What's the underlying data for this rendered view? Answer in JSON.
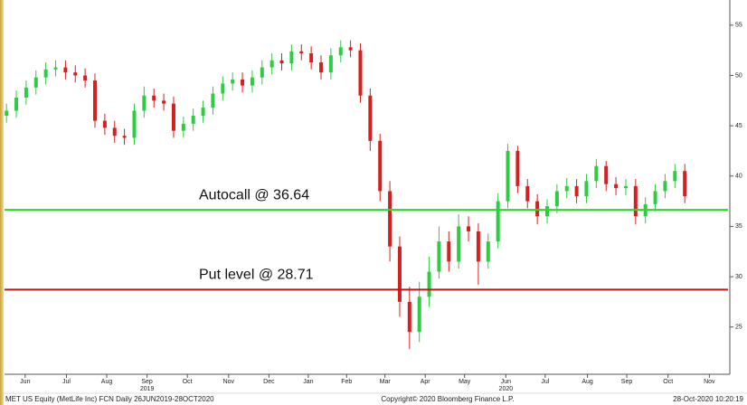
{
  "chart_data": {
    "type": "candlestick",
    "annotations": [
      {
        "text": "Autocall @ 36.64",
        "value": 36.64,
        "color": "#22e022"
      },
      {
        "text": "Put level @ 28.71",
        "value": 28.71,
        "color": "#d01010"
      }
    ],
    "footer": {
      "left": "MET US Equity (MetLife Inc) FCN  Daily 26JUN2019-28OCT2020",
      "center": "Copyright© 2020 Bloomberg Finance L.P.",
      "right": "28-Oct-2020 10:20:19"
    },
    "up_color": "#2ecc40",
    "down_color": "#d62020",
    "categories": [
      null,
      null,
      null,
      null,
      null,
      null,
      null,
      null,
      null,
      null,
      null,
      null,
      null,
      null,
      null,
      null,
      null,
      null,
      null,
      null,
      null,
      null,
      null,
      null,
      null,
      null,
      null,
      null,
      null,
      null,
      null,
      null,
      null,
      null,
      null,
      null,
      null,
      null,
      null,
      null,
      null,
      null,
      null,
      null,
      null,
      null,
      null,
      null,
      null,
      null,
      null,
      null,
      null,
      null,
      null,
      null,
      null,
      null,
      null,
      null,
      null,
      null,
      null,
      null,
      null,
      null,
      null,
      null,
      null,
      null
    ],
    "open": [
      46.0,
      46.5,
      47.8,
      48.8,
      49.8,
      50.6,
      50.8,
      50.3,
      50.0,
      49.5,
      45.5,
      44.8,
      44.0,
      43.8,
      46.5,
      48.0,
      47.5,
      47.2,
      44.5,
      45.2,
      46.0,
      46.8,
      48.2,
      49.2,
      49.6,
      49.0,
      49.8,
      50.8,
      51.5,
      51.2,
      52.4,
      52.2,
      51.3,
      50.3,
      52.0,
      52.8,
      52.5,
      48.0,
      43.5,
      38.5,
      33.0,
      27.5,
      24.5,
      28.0,
      30.5,
      33.5,
      31.5,
      35.0,
      34.5,
      31.5,
      33.5,
      37.5,
      42.5,
      39.0,
      37.5,
      36.0,
      37.0,
      38.5,
      39.0,
      38.0,
      39.5,
      41.0,
      39.2,
      38.8,
      39.0,
      36.0,
      37.2,
      38.5,
      39.5,
      40.5
    ],
    "high": [
      47.2,
      48.5,
      49.5,
      50.5,
      51.3,
      51.5,
      51.5,
      51.0,
      50.7,
      50.2,
      46.2,
      45.5,
      44.7,
      47.2,
      48.9,
      48.7,
      48.2,
      47.9,
      45.9,
      46.7,
      47.5,
      48.9,
      49.9,
      50.3,
      50.3,
      50.5,
      51.5,
      52.2,
      52.2,
      53.1,
      53.1,
      52.9,
      52.0,
      52.7,
      53.5,
      53.5,
      53.2,
      48.7,
      44.2,
      39.5,
      34.0,
      29.0,
      29.5,
      32.0,
      35.0,
      34.5,
      36.2,
      36.0,
      35.3,
      34.3,
      38.3,
      43.2,
      43.0,
      39.7,
      38.2,
      37.7,
      39.2,
      39.8,
      39.7,
      40.2,
      41.7,
      41.5,
      39.9,
      39.7,
      39.7,
      37.9,
      39.2,
      40.2,
      41.2,
      41.2
    ],
    "low": [
      45.3,
      45.8,
      47.1,
      48.1,
      49.1,
      49.9,
      49.6,
      49.3,
      48.8,
      44.8,
      44.1,
      43.3,
      43.1,
      43.1,
      45.8,
      46.8,
      46.5,
      43.8,
      43.8,
      44.5,
      45.3,
      46.1,
      47.5,
      48.5,
      48.3,
      48.3,
      49.1,
      50.1,
      50.5,
      50.5,
      51.5,
      50.6,
      49.6,
      49.6,
      51.3,
      51.8,
      47.3,
      42.5,
      37.5,
      31.5,
      26.0,
      22.8,
      23.5,
      27.0,
      29.8,
      30.5,
      30.8,
      33.5,
      29.2,
      30.8,
      32.8,
      36.8,
      38.3,
      36.8,
      35.2,
      35.3,
      36.3,
      37.8,
      37.3,
      37.3,
      38.8,
      38.5,
      38.1,
      38.1,
      35.2,
      35.3,
      36.5,
      37.8,
      38.8,
      37.3
    ],
    "close": [
      46.5,
      47.8,
      48.8,
      49.8,
      50.6,
      50.8,
      50.3,
      50.0,
      49.5,
      45.5,
      44.8,
      44.0,
      43.8,
      46.5,
      48.0,
      47.5,
      47.2,
      44.5,
      45.2,
      46.0,
      46.8,
      48.2,
      49.2,
      49.6,
      49.0,
      49.8,
      50.8,
      51.5,
      51.2,
      52.4,
      52.2,
      51.3,
      50.3,
      52.0,
      52.8,
      52.5,
      48.0,
      43.5,
      38.5,
      33.0,
      27.5,
      24.5,
      28.0,
      30.5,
      33.5,
      31.5,
      35.0,
      34.5,
      31.5,
      33.5,
      37.5,
      42.5,
      39.0,
      37.5,
      36.0,
      37.0,
      38.5,
      39.0,
      38.0,
      39.5,
      41.0,
      39.2,
      38.8,
      39.0,
      36.0,
      37.2,
      38.5,
      39.5,
      40.5,
      38.0
    ],
    "xlim": [
      -0.2,
      73.4
    ],
    "xticks": [
      {
        "value": 1.9,
        "label": "Jun"
      },
      {
        "value": 6.1,
        "label": "Jul"
      },
      {
        "value": 10.2,
        "label": "Aug"
      },
      {
        "value": 14.3,
        "label": "Sep"
      },
      {
        "value": 18.4,
        "label": "Oct"
      },
      {
        "value": 22.6,
        "label": "Nov"
      },
      {
        "value": 26.7,
        "label": "Dec"
      },
      {
        "value": 30.7,
        "label": "Jan"
      },
      {
        "value": 34.6,
        "label": "Feb"
      },
      {
        "value": 38.5,
        "label": "Mar"
      },
      {
        "value": 42.6,
        "label": "Apr"
      },
      {
        "value": 46.6,
        "label": "May"
      },
      {
        "value": 50.8,
        "label": "Jun"
      },
      {
        "value": 54.8,
        "label": "Jul"
      },
      {
        "value": 59.1,
        "label": "Aug"
      },
      {
        "value": 63.1,
        "label": "Sep"
      },
      {
        "value": 67.3,
        "label": "Oct"
      },
      {
        "value": 71.5,
        "label": "Nov"
      }
    ],
    "year_labels": [
      {
        "value": 14.3,
        "label": "2019"
      },
      {
        "value": 50.8,
        "label": "2020"
      }
    ],
    "ylim": [
      20.3,
      57.5
    ],
    "yticks": [
      25,
      30,
      35,
      40,
      45,
      50,
      55
    ]
  }
}
